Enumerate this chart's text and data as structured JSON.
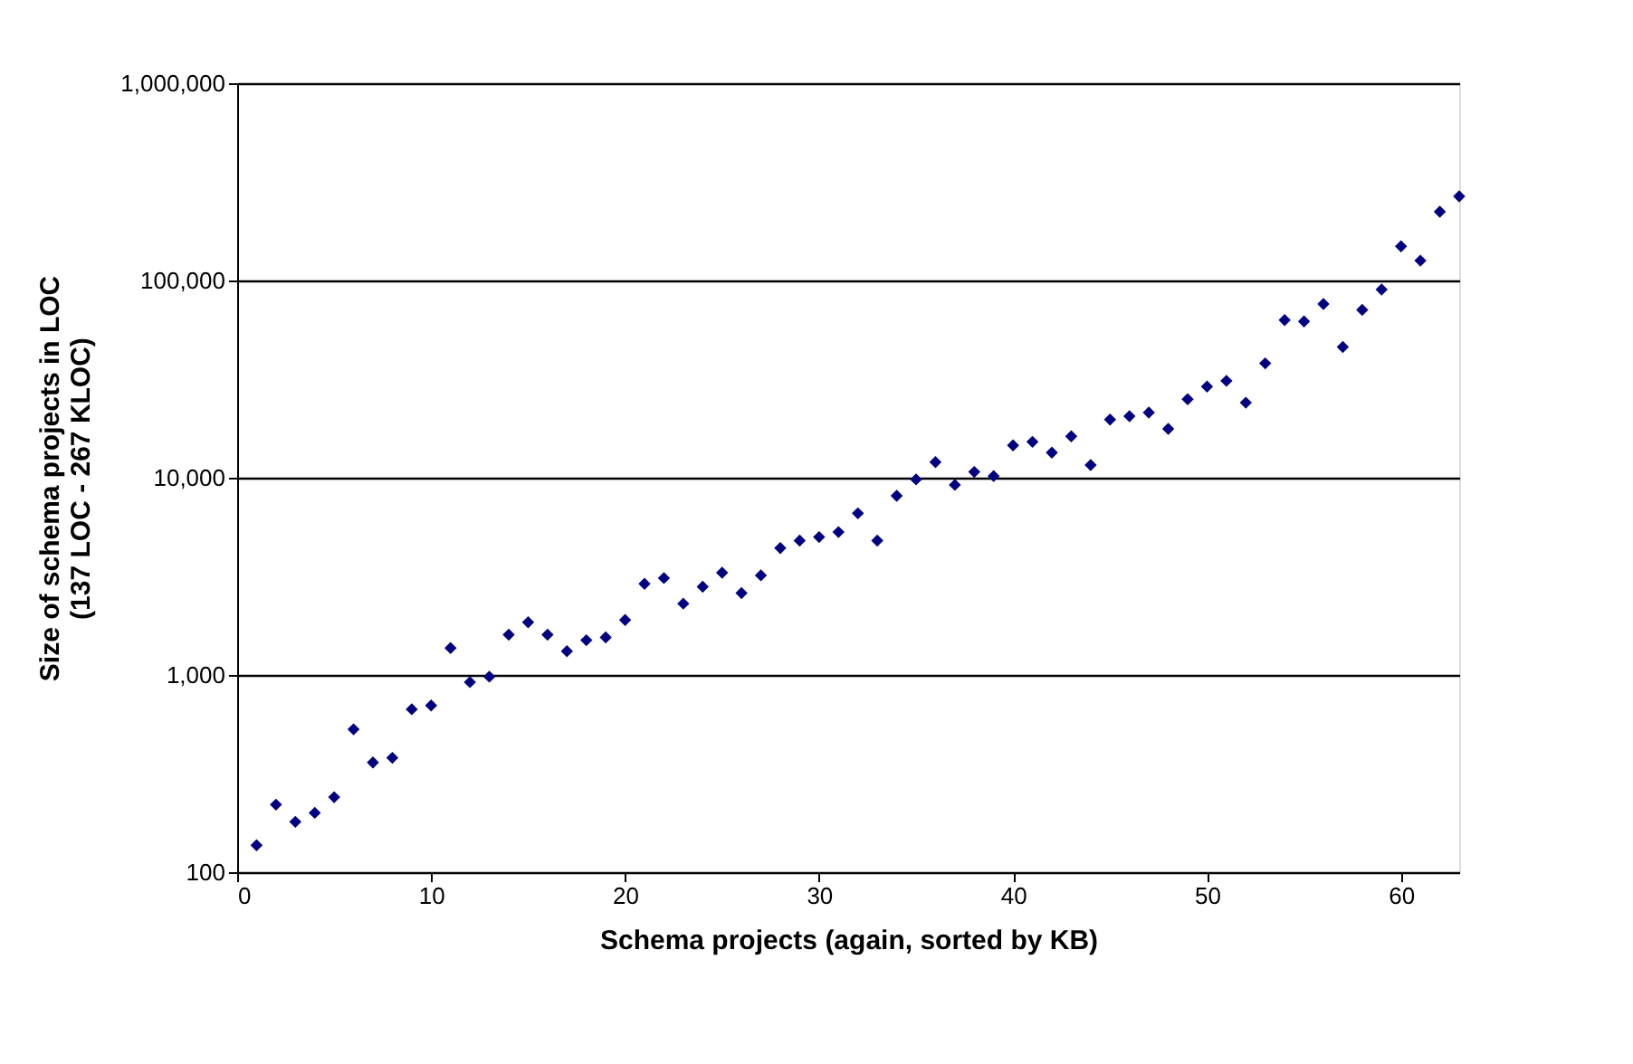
{
  "chart_data": {
    "type": "scatter",
    "xlabel": "Schema projects (again, sorted by KB)",
    "ylabel": "Size of schema projects in LOC\n(137 LOC - 267 KLOC)",
    "x": [
      1,
      2,
      3,
      4,
      5,
      6,
      7,
      8,
      9,
      10,
      11,
      12,
      13,
      14,
      15,
      16,
      17,
      18,
      19,
      20,
      21,
      22,
      23,
      24,
      25,
      26,
      27,
      28,
      29,
      30,
      31,
      32,
      33,
      34,
      35,
      36,
      37,
      38,
      39,
      40,
      41,
      42,
      43,
      44,
      45,
      46,
      47,
      48,
      49,
      50,
      51,
      52,
      53,
      54,
      55,
      56,
      57,
      58,
      59,
      60,
      61,
      62,
      63
    ],
    "series": [
      {
        "color": "#000080",
        "values": [
          137,
          220,
          180,
          200,
          240,
          530,
          360,
          380,
          670,
          700,
          1370,
          920,
          980,
          1600,
          1850,
          1600,
          1320,
          1500,
          1550,
          1900,
          2900,
          3100,
          2300,
          2800,
          3300,
          2600,
          3200,
          4400,
          4800,
          5000,
          5300,
          6600,
          4800,
          8100,
          9800,
          12000,
          9200,
          10700,
          10200,
          14600,
          15200,
          13400,
          16200,
          11600,
          19700,
          20500,
          21400,
          17700,
          25000,
          29000,
          31000,
          24000,
          38000,
          63000,
          62000,
          76000,
          46000,
          71000,
          90000,
          149000,
          126000,
          223000,
          267000
        ]
      }
    ],
    "log": "y",
    "xlim": [
      0,
      63
    ],
    "xticks": [
      0,
      10,
      20,
      30,
      40,
      50,
      60
    ],
    "ylim": [
      100,
      1000000
    ],
    "yticks": [
      {
        "value": 100,
        "label": "100"
      },
      {
        "value": 1000,
        "label": "1,000"
      },
      {
        "value": 10000,
        "label": "10,000"
      },
      {
        "value": 100000,
        "label": "100,000"
      },
      {
        "value": 1000000,
        "label": "1,000,000"
      }
    ],
    "grid": "y",
    "marker": "diamond"
  }
}
